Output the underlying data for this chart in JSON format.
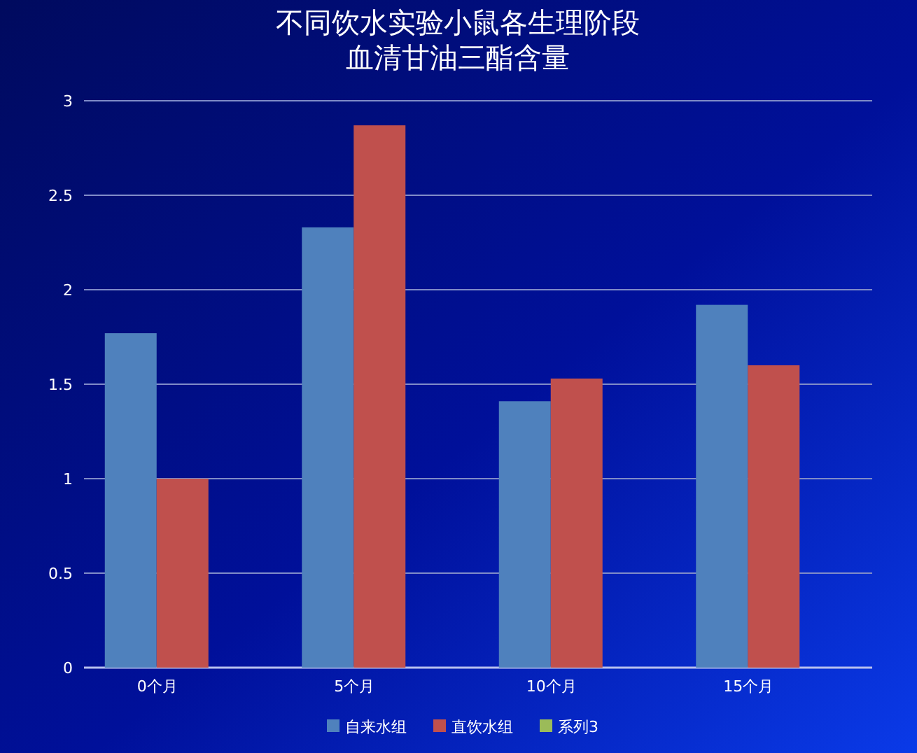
{
  "chart_data": {
    "type": "bar",
    "title": "不同饮水实验小鼠各生理阶段血清甘油三酯含量",
    "categories": [
      "0个月",
      "5个月",
      "10个月",
      "15个月"
    ],
    "series": [
      {
        "name": "自来水组",
        "color": "#4f81bd",
        "values": [
          1.77,
          2.33,
          1.41,
          1.92
        ]
      },
      {
        "name": "直饮水组",
        "color": "#c0504d",
        "values": [
          1.0,
          2.87,
          1.53,
          1.6
        ]
      },
      {
        "name": "系列3",
        "color": "#9bbb59",
        "values": [
          null,
          null,
          null,
          null
        ]
      }
    ],
    "ylim": [
      0,
      3
    ],
    "yticks": [
      0,
      0.5,
      1,
      1.5,
      2,
      2.5,
      3
    ],
    "grid": "y",
    "legend": "bottom"
  }
}
